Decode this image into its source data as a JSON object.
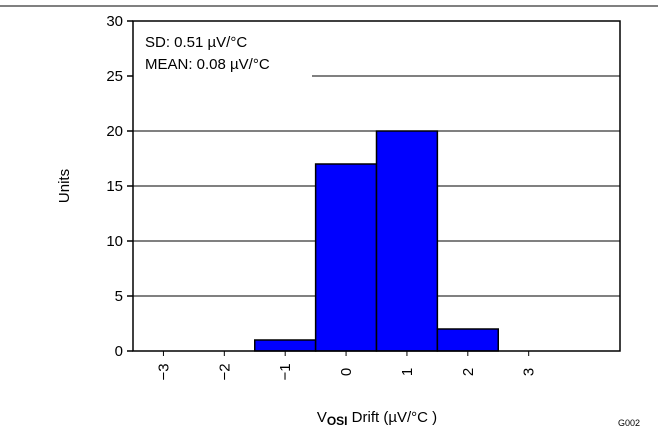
{
  "chart_data": {
    "type": "bar",
    "title": "",
    "categories": [
      "−3",
      "−2",
      "−1",
      "0",
      "1",
      "2",
      "3"
    ],
    "x_ticks": [
      "−3",
      "−2",
      "−1",
      "0",
      "1",
      "2",
      "3"
    ],
    "bins": [
      {
        "from": -1.5,
        "to": -0.5,
        "value": 1
      },
      {
        "from": -0.5,
        "to": 0.5,
        "value": 17
      },
      {
        "from": 0.5,
        "to": 1.5,
        "value": 20
      },
      {
        "from": 1.5,
        "to": 2.5,
        "value": 2
      }
    ],
    "xlim": [
      -3.5,
      4.5
    ],
    "ylim": [
      0,
      30
    ],
    "y_ticks": [
      0,
      5,
      10,
      15,
      20,
      25,
      30
    ],
    "ylabel": "Units",
    "xlabel": {
      "prefix": "V",
      "subscript": "OSI",
      "suffix": " Drift (µV/°C )"
    },
    "annotations": [
      "SD: 0.51 µV/°C",
      "MEAN: 0.08 µV/°C"
    ],
    "figure_id": "G002",
    "grid": {
      "horizontal": true,
      "vertical": false
    },
    "bar_color": "#0000ff",
    "bar_edge_color": "#000000"
  }
}
